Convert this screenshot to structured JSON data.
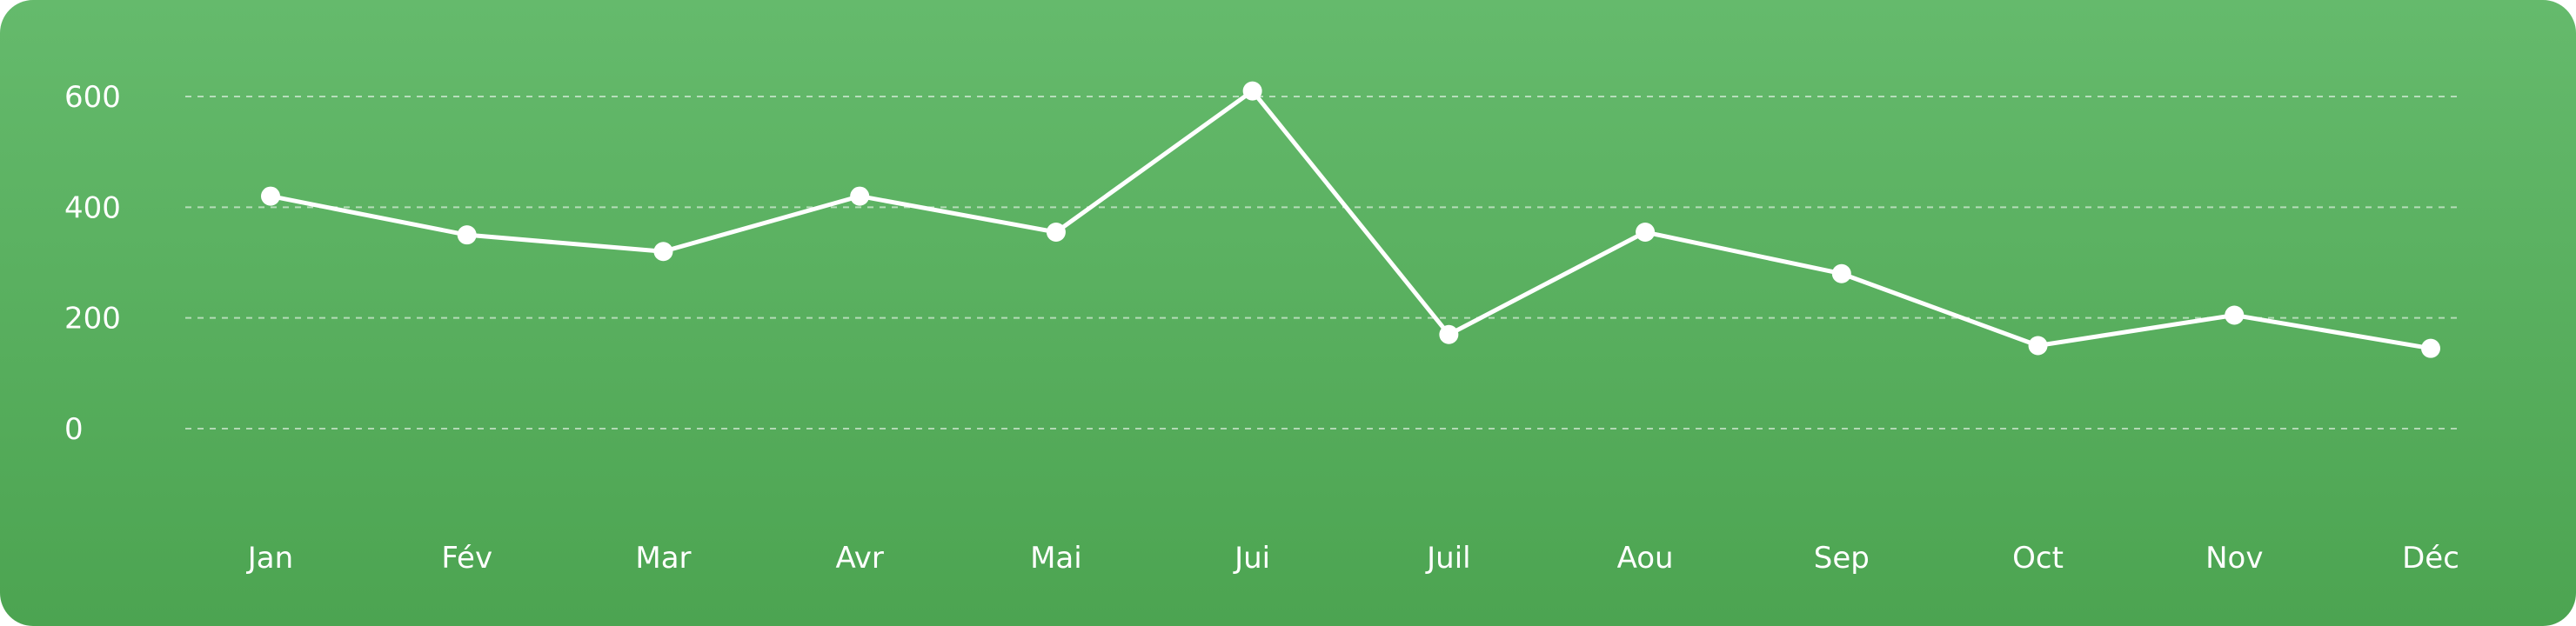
{
  "chart_data": {
    "type": "line",
    "categories": [
      "Jan",
      "Fév",
      "Mar",
      "Avr",
      "Mai",
      "Jui",
      "Juil",
      "Aou",
      "Sep",
      "Oct",
      "Nov",
      "Déc"
    ],
    "series": [
      {
        "values": [
          420,
          350,
          320,
          420,
          355,
          610,
          170,
          355,
          280,
          150,
          205,
          145
        ]
      }
    ],
    "yticks": [
      0,
      200,
      400,
      600
    ],
    "ylim": [
      0,
      600
    ],
    "grid": true,
    "legend": "none",
    "colors": {
      "background_top": "#65ba6c",
      "background_bottom": "#4ca451",
      "line": "#ffffff",
      "text": "#ffffff"
    }
  }
}
